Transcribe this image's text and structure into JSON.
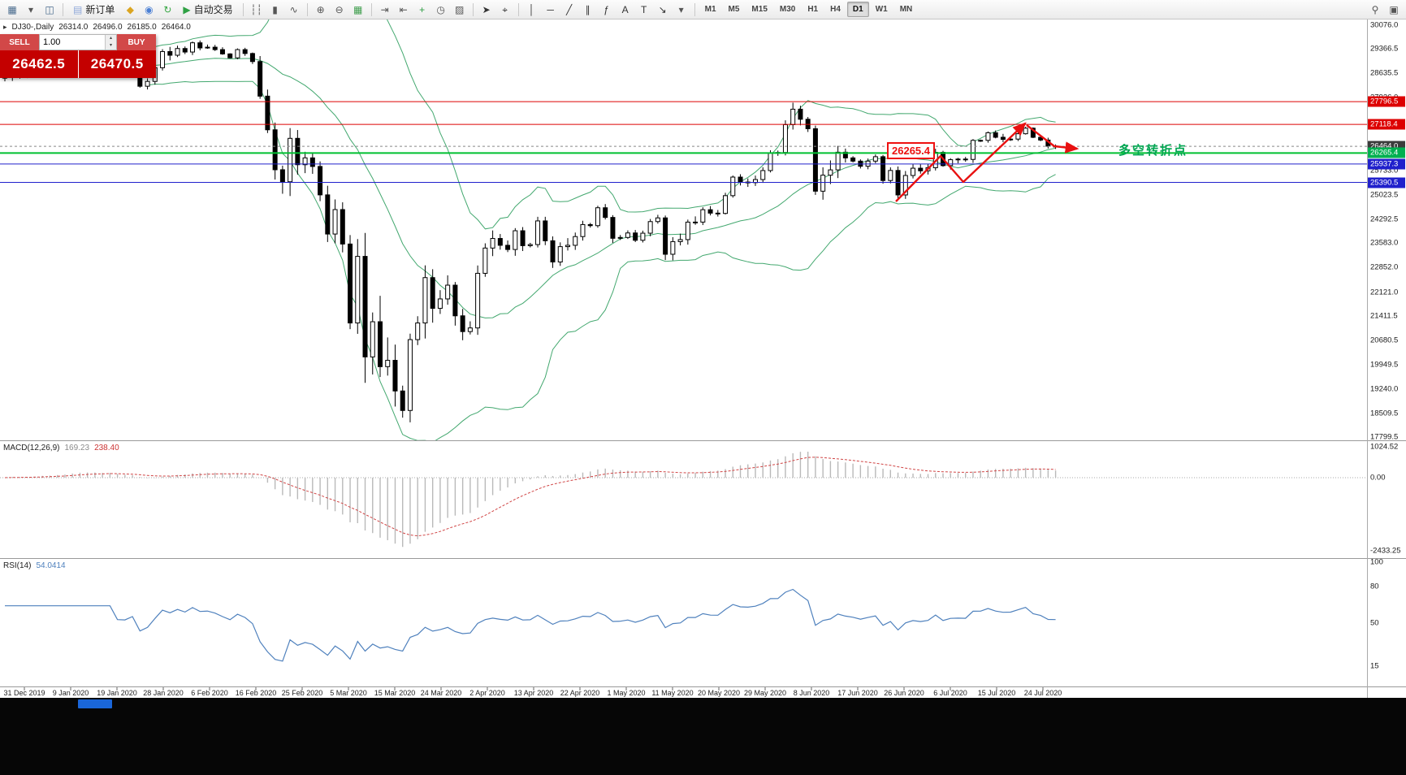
{
  "toolbar": {
    "active_timeframe": "D1",
    "timeframes": [
      "M1",
      "M5",
      "M15",
      "M30",
      "H1",
      "H4",
      "D1",
      "W1",
      "MN"
    ],
    "groups": [
      {
        "type": "icons",
        "items": [
          {
            "name": "new-chart-icon",
            "glyph": "▦",
            "color": "#46698c"
          },
          {
            "name": "chart-list-dropdown-icon",
            "glyph": "▾",
            "color": "#555555"
          },
          {
            "name": "profiles-icon",
            "glyph": "◫",
            "color": "#46698c"
          }
        ]
      },
      {
        "type": "sep"
      },
      {
        "type": "button",
        "name": "new-order-button",
        "label": "新订单",
        "icon": "▤",
        "icon_color": "#8fa8d9"
      },
      {
        "type": "icons",
        "items": [
          {
            "name": "market-watch-icon",
            "glyph": "◆",
            "color": "#dba520"
          },
          {
            "name": "navigator-icon",
            "glyph": "◉",
            "color": "#4a7fd4"
          },
          {
            "name": "refresh-icon",
            "glyph": "↻",
            "color": "#39a845"
          }
        ]
      },
      {
        "type": "button",
        "name": "autotrading-button",
        "label": "自动交易",
        "icon": "▶",
        "icon_color": "#2fa144"
      },
      {
        "type": "sep"
      },
      {
        "type": "icons",
        "items": [
          {
            "name": "bar-chart-icon",
            "glyph": "┆┆",
            "color": "#555555"
          },
          {
            "name": "candlestick-chart-icon",
            "glyph": "▮",
            "color": "#555555"
          },
          {
            "name": "line-chart-icon",
            "glyph": "∿",
            "color": "#555555"
          }
        ]
      },
      {
        "type": "sep"
      },
      {
        "type": "icons",
        "items": [
          {
            "name": "zoom-in-icon",
            "glyph": "⊕",
            "color": "#555555"
          },
          {
            "name": "zoom-out-icon",
            "glyph": "⊖",
            "color": "#555555"
          },
          {
            "name": "tile-windows-icon",
            "glyph": "▦",
            "color": "#3f9e4d"
          }
        ]
      },
      {
        "type": "sep"
      },
      {
        "type": "icons",
        "items": [
          {
            "name": "auto-scroll-icon",
            "glyph": "⇥",
            "color": "#555555"
          },
          {
            "name": "chart-shift-icon",
            "glyph": "⇤",
            "color": "#555555"
          },
          {
            "name": "add-indicator-icon",
            "glyph": "+",
            "color": "#2f9e44"
          },
          {
            "name": "periods-icon",
            "glyph": "◷",
            "color": "#555555"
          },
          {
            "name": "templates-icon",
            "glyph": "▨",
            "color": "#555555"
          }
        ]
      },
      {
        "type": "sep"
      },
      {
        "type": "icons",
        "items": [
          {
            "name": "cursor-icon",
            "glyph": "➤",
            "color": "#333333"
          },
          {
            "name": "crosshair-icon",
            "glyph": "⌖",
            "color": "#333333"
          }
        ]
      },
      {
        "type": "sep"
      },
      {
        "type": "icons",
        "items": [
          {
            "name": "vertical-line-icon",
            "glyph": "│",
            "color": "#333333"
          },
          {
            "name": "horizontal-line-icon",
            "glyph": "─",
            "color": "#333333"
          },
          {
            "name": "trendline-icon",
            "glyph": "╱",
            "color": "#333333"
          },
          {
            "name": "channel-icon",
            "glyph": "∥",
            "color": "#333333"
          },
          {
            "name": "fibonacci-icon",
            "glyph": "ƒ",
            "color": "#333333"
          },
          {
            "name": "text-icon",
            "glyph": "A",
            "color": "#333333"
          },
          {
            "name": "label-icon",
            "glyph": "T",
            "color": "#333333"
          },
          {
            "name": "shapes-icon",
            "glyph": "↘",
            "color": "#333333"
          },
          {
            "name": "shapes-dropdown-icon",
            "glyph": "▾",
            "color": "#555555"
          }
        ]
      },
      {
        "type": "sep"
      },
      {
        "type": "timeframes"
      },
      {
        "type": "spacer"
      },
      {
        "type": "icons",
        "items": [
          {
            "name": "search-icon",
            "glyph": "⚲",
            "color": "#555555"
          },
          {
            "name": "window-icon",
            "glyph": "▣",
            "color": "#555555"
          }
        ]
      }
    ]
  },
  "chart": {
    "collapse_glyph": "▸",
    "symbol_period": "DJ30-,Daily",
    "open": "26314.0",
    "high": "26496.0",
    "low": "26185.0",
    "close": "26464.0"
  },
  "trade_panel": {
    "sell_label": "SELL",
    "buy_label": "BUY",
    "volume": "1.00",
    "sell_price": "26462.5",
    "buy_price": "26470.5"
  },
  "annotations": {
    "price_box": "26265.4",
    "turning_point_text": "多空转折点"
  },
  "indicator_labels": {
    "macd_name": "MACD(12,26,9)",
    "macd_main": "169.23",
    "macd_signal": "238.40",
    "rsi_name": "RSI(14)",
    "rsi_value": "54.0414"
  },
  "chart_data": {
    "type": "candlestick",
    "symbol": "DJ30-",
    "timeframe": "Daily",
    "current_bar": {
      "open": 26314.0,
      "high": 26496.0,
      "low": 26185.0,
      "close": 26464.0
    },
    "y_axis": {
      "min": 17799.5,
      "max": 30076.0,
      "labels": [
        "30076.0",
        "29366.5",
        "28635.5",
        "27926.0",
        "25733.0",
        "25023.5",
        "24292.5",
        "23583.0",
        "22852.0",
        "22121.0",
        "21411.5",
        "20680.5",
        "19949.5",
        "19240.0",
        "18509.5",
        "17799.5"
      ],
      "markers": [
        {
          "value": 27796.5,
          "label": "27796.5",
          "type": "resistance-line",
          "color": "#dd0000"
        },
        {
          "value": 27118.4,
          "label": "27118.4",
          "type": "resistance-line",
          "color": "#dd0000"
        },
        {
          "value": 26464.0,
          "label": "26464.0",
          "type": "current-price",
          "color": "#3c3c3c"
        },
        {
          "value": 26265.4,
          "label": "26265.4",
          "type": "pivot-line",
          "color": "#00b050"
        },
        {
          "value": 25937.3,
          "label": "25937.3",
          "type": "support-line",
          "color": "#2020cc"
        },
        {
          "value": 25390.5,
          "label": "25390.5",
          "type": "support-line",
          "color": "#2020cc"
        }
      ]
    },
    "x_axis": {
      "dates": [
        "31 Dec 2019",
        "9 Jan 2020",
        "19 Jan 2020",
        "28 Jan 2020",
        "6 Feb 2020",
        "16 Feb 2020",
        "25 Feb 2020",
        "5 Mar 2020",
        "15 Mar 2020",
        "24 Mar 2020",
        "2 Apr 2020",
        "13 Apr 2020",
        "22 Apr 2020",
        "1 May 2020",
        "11 May 2020",
        "20 May 2020",
        "29 May 2020",
        "8 Jun 2020",
        "17 Jun 2020",
        "26 Jun 2020",
        "6 Jul 2020",
        "15 Jul 2020",
        "24 Jul 2020"
      ]
    },
    "price_series": {
      "closes": [
        28538,
        28869,
        28583,
        28634,
        28745,
        28957,
        28824,
        29001,
        29030,
        29297,
        29348,
        29186,
        29160,
        28939,
        29196,
        28734,
        28722,
        28859,
        28256,
        28400,
        28808,
        29290,
        29180,
        29380,
        29276,
        29551,
        29398,
        29420,
        29348,
        29220,
        29102,
        29348,
        29232,
        28992,
        27961,
        26958,
        25767,
        25409,
        26703,
        25917,
        26121,
        25865,
        25018,
        23851,
        24580,
        23553,
        21200,
        23185,
        20188,
        21237,
        19898,
        20087,
        19173,
        18592,
        20704,
        21200,
        22552,
        21636,
        21917,
        22327,
        21413,
        20943,
        21052,
        22680,
        23433,
        23719,
        23515,
        23390,
        23949,
        23504,
        23537,
        24242,
        23650,
        23018,
        23475,
        23515,
        23775,
        24133,
        24101,
        24634,
        24346,
        23724,
        23749,
        23883,
        23665,
        23876,
        24222,
        24332,
        23248,
        23625,
        23685,
        24206,
        24207,
        24576,
        24474,
        24465,
        24995,
        25548,
        25401,
        25383,
        25475,
        25743,
        26270,
        26282,
        27111,
        27572,
        27272,
        26990,
        25128,
        25605,
        25763,
        26290,
        26120,
        26024,
        25871,
        26025,
        26156,
        25446,
        25746,
        25016,
        25596,
        25813,
        25735,
        25827,
        26287,
        25890,
        26067,
        26086,
        26075,
        26642,
        26643,
        26870,
        26735,
        26672,
        26681,
        26840,
        27006,
        26734,
        26652,
        26470,
        26464
      ]
    },
    "hlines": [
      {
        "value": 27796.5,
        "color": "#dd0000",
        "width": 1
      },
      {
        "value": 27118.4,
        "color": "#dd0000",
        "width": 1
      },
      {
        "value": 26265.4,
        "color": "#00c030",
        "width": 2
      },
      {
        "value": 25937.3,
        "color": "#2020cc",
        "width": 1
      },
      {
        "value": 25390.5,
        "color": "#2020cc",
        "width": 1
      }
    ],
    "current_price_line": {
      "value": 26464.0,
      "color": "#888888"
    },
    "zigzag": [
      {
        "points": [
          [
            1103,
            248
          ],
          [
            1158,
            192
          ],
          [
            1186,
            224
          ],
          [
            1262,
            152
          ]
        ]
      },
      {
        "points": [
          [
            1264,
            154
          ],
          [
            1298,
            180
          ],
          [
            1326,
            183
          ]
        ]
      }
    ],
    "indicators": {
      "bollinger": {
        "period": 20,
        "deviation": 2,
        "color": "#2f9e5f"
      },
      "macd": {
        "fast": 12,
        "slow": 26,
        "signal": 9,
        "axis_labels": [
          "1024.52",
          "0.00",
          "-2433.25"
        ],
        "current_main": 169.23,
        "current_signal": 238.4,
        "hist_color": "#b9b9b9",
        "signal_color": "#d04545"
      },
      "rsi": {
        "period": 14,
        "current": 54.0414,
        "levels": [
          "100",
          "80",
          "50",
          "15"
        ],
        "color": "#4f81bd"
      }
    }
  }
}
